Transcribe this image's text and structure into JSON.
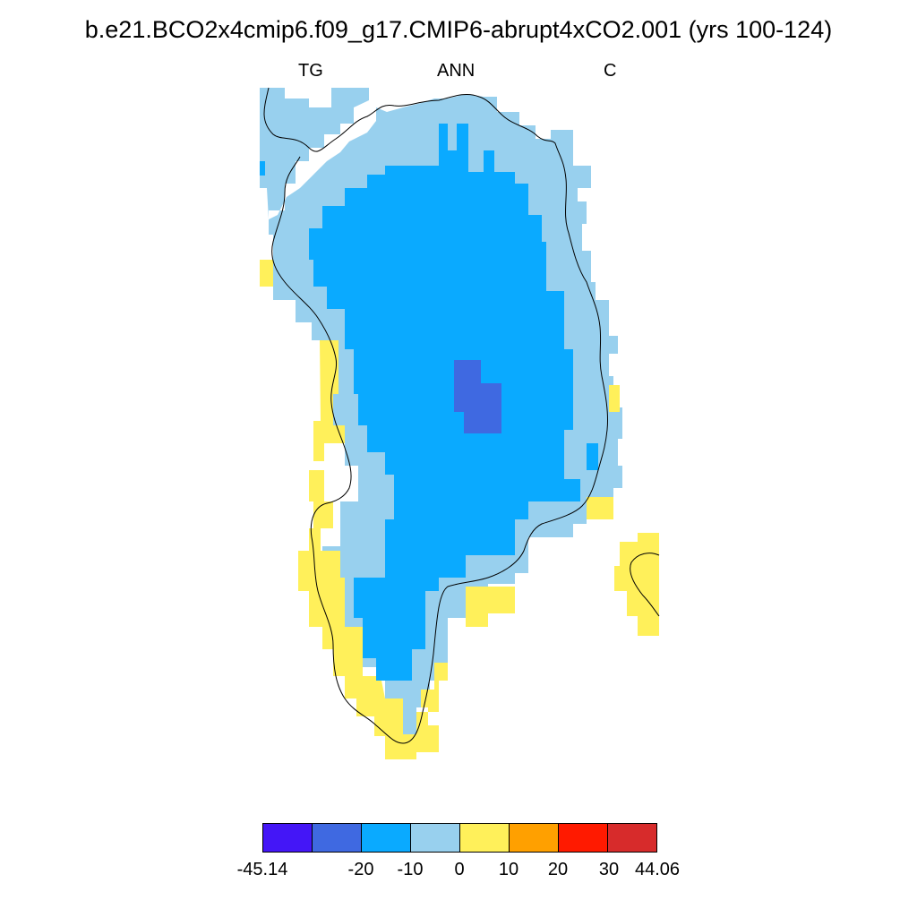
{
  "title": "b.e21.BCO2x4cmip6.f09_g17.CMIP6-abrupt4xCO2.001 (yrs 100-124)",
  "subtitles": {
    "left": "TG",
    "center": "ANN",
    "right": "C"
  },
  "colorbar": {
    "colors": [
      "#4416f7",
      "#3f69e1",
      "#0aaaff",
      "#98d0ee",
      "#fff05a",
      "#ffa000",
      "#ff1a00",
      "#d72b2b"
    ],
    "labels": [
      "-45.14",
      "-20",
      "-10",
      "0",
      "10",
      "20",
      "30",
      "44.06"
    ]
  }
}
